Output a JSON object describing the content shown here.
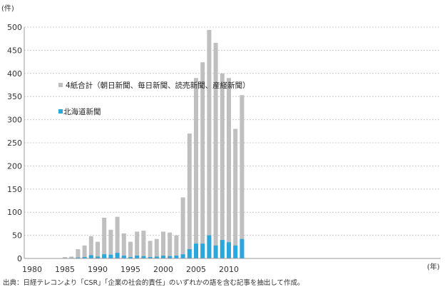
{
  "chart_data": {
    "type": "bar",
    "y_unit": "(件)",
    "x_unit": "(年)",
    "ylim": [
      0,
      500
    ],
    "y_ticks": [
      "0",
      "50",
      "100",
      "150",
      "200",
      "250",
      "300",
      "350",
      "400",
      "450",
      "500"
    ],
    "x_tick_labels": [
      "1980",
      "1985",
      "1990",
      "1995",
      "2000",
      "2005",
      "2010"
    ],
    "grid": true,
    "legend_placement": "upper-left inside plot",
    "years": [
      1980,
      1981,
      1982,
      1983,
      1984,
      1985,
      1986,
      1987,
      1988,
      1989,
      1990,
      1991,
      1992,
      1993,
      1994,
      1995,
      1996,
      1997,
      1998,
      1999,
      2000,
      2001,
      2002,
      2003,
      2004,
      2005,
      2006,
      2007,
      2008,
      2009,
      2010,
      2011,
      2012
    ],
    "series": [
      {
        "name": "4紙合計（朝日新聞、毎日新聞、読売新聞、産経新聞）",
        "color": "#bfbfbf",
        "values": [
          0,
          0,
          0,
          0,
          0,
          3,
          4,
          20,
          28,
          48,
          36,
          88,
          62,
          90,
          54,
          36,
          58,
          60,
          38,
          42,
          58,
          56,
          50,
          132,
          270,
          390,
          424,
          494,
          466,
          400,
          390,
          280,
          353
        ]
      },
      {
        "name": "北海道新聞",
        "color": "#2aa7dc",
        "values": [
          0,
          0,
          0,
          0,
          0,
          0,
          1,
          2,
          3,
          7,
          4,
          9,
          8,
          12,
          6,
          3,
          6,
          5,
          3,
          4,
          6,
          5,
          6,
          9,
          20,
          32,
          32,
          50,
          28,
          40,
          35,
          28,
          42
        ]
      }
    ],
    "source_note": "出典：日経テレコンより「CSR」「企業の社会的責任」のいずれかの語を含む記事を抽出して作成。"
  }
}
